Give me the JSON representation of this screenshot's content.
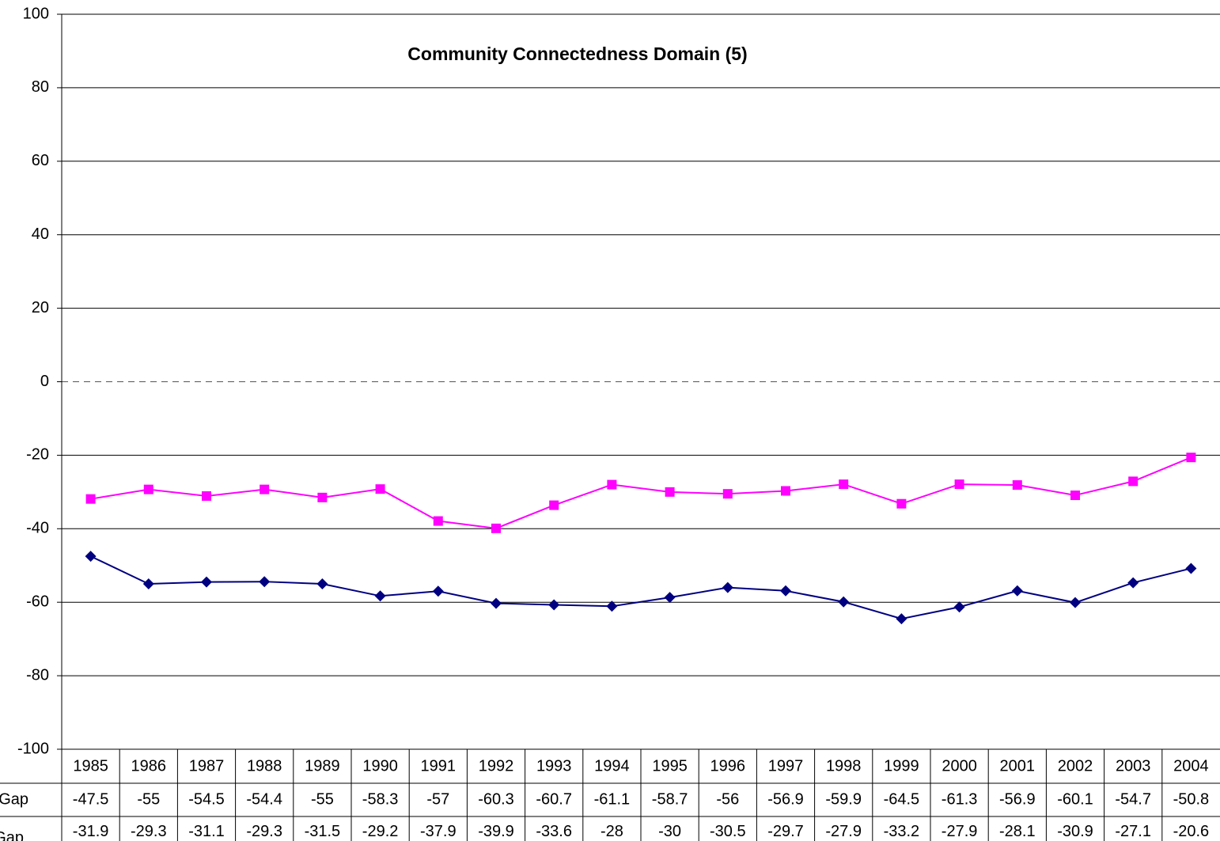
{
  "chart_data": {
    "type": "line",
    "title": "Community Connectedness Domain (5)",
    "categories": [
      "1985",
      "1986",
      "1987",
      "1988",
      "1989",
      "1990",
      "1991",
      "1992",
      "1993",
      "1994",
      "1995",
      "1996",
      "1997",
      "1998",
      "1999",
      "2000",
      "2001",
      "2002",
      "2003",
      "2004"
    ],
    "series": [
      {
        "name": "e Gap",
        "color": "#000080",
        "marker": "diamond",
        "values": [
          -47.5,
          -55,
          -54.5,
          -54.4,
          -55,
          -58.3,
          -57,
          -60.3,
          -60.7,
          -61.1,
          -58.7,
          -56,
          -56.9,
          -59.9,
          -64.5,
          -61.3,
          -56.9,
          -60.1,
          -54.7,
          -50.8
        ]
      },
      {
        "name": "Gap",
        "color": "#ff00ff",
        "marker": "square",
        "values": [
          -31.9,
          -29.3,
          -31.1,
          -29.3,
          -31.5,
          -29.2,
          -37.9,
          -39.9,
          -33.6,
          -28,
          -30,
          -30.5,
          -29.7,
          -27.9,
          -33.2,
          -27.9,
          -28.1,
          -30.9,
          -27.1,
          -20.6
        ]
      }
    ],
    "ylim": [
      -100,
      100
    ],
    "yticks": [
      -100,
      -80,
      -60,
      -40,
      -20,
      0,
      20,
      40,
      60,
      80,
      100
    ],
    "grid": true,
    "data_table": true
  }
}
